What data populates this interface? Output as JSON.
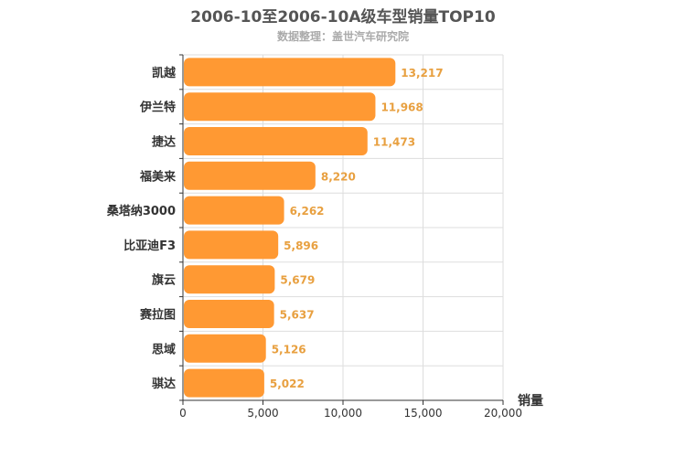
{
  "chart_data": {
    "type": "bar",
    "orientation": "horizontal",
    "title": "2006-10至2006-10A级车型销量TOP10",
    "subtitle": "数据整理：盖世汽车研究院",
    "categories": [
      "凯越",
      "伊兰特",
      "捷达",
      "福美来",
      "桑塔纳3000",
      "比亚迪F3",
      "旗云",
      "赛拉图",
      "思域",
      "骐达"
    ],
    "values": [
      13217,
      11968,
      11473,
      8220,
      6262,
      5896,
      5679,
      5637,
      5126,
      5022
    ],
    "value_labels": [
      "13,217",
      "11,968",
      "11,473",
      "8,220",
      "6,262",
      "5,896",
      "5,679",
      "5,637",
      "5,126",
      "5,022"
    ],
    "xlabel": "销量",
    "ylabel": "",
    "xlim": [
      0,
      20000
    ],
    "x_ticks": [
      0,
      5000,
      10000,
      15000,
      20000
    ],
    "x_tick_labels": [
      "0",
      "5,000",
      "10,000",
      "15,000",
      "20,000"
    ],
    "grid": true,
    "bar_color": "#ff9933",
    "value_label_color": "#e8a040"
  }
}
